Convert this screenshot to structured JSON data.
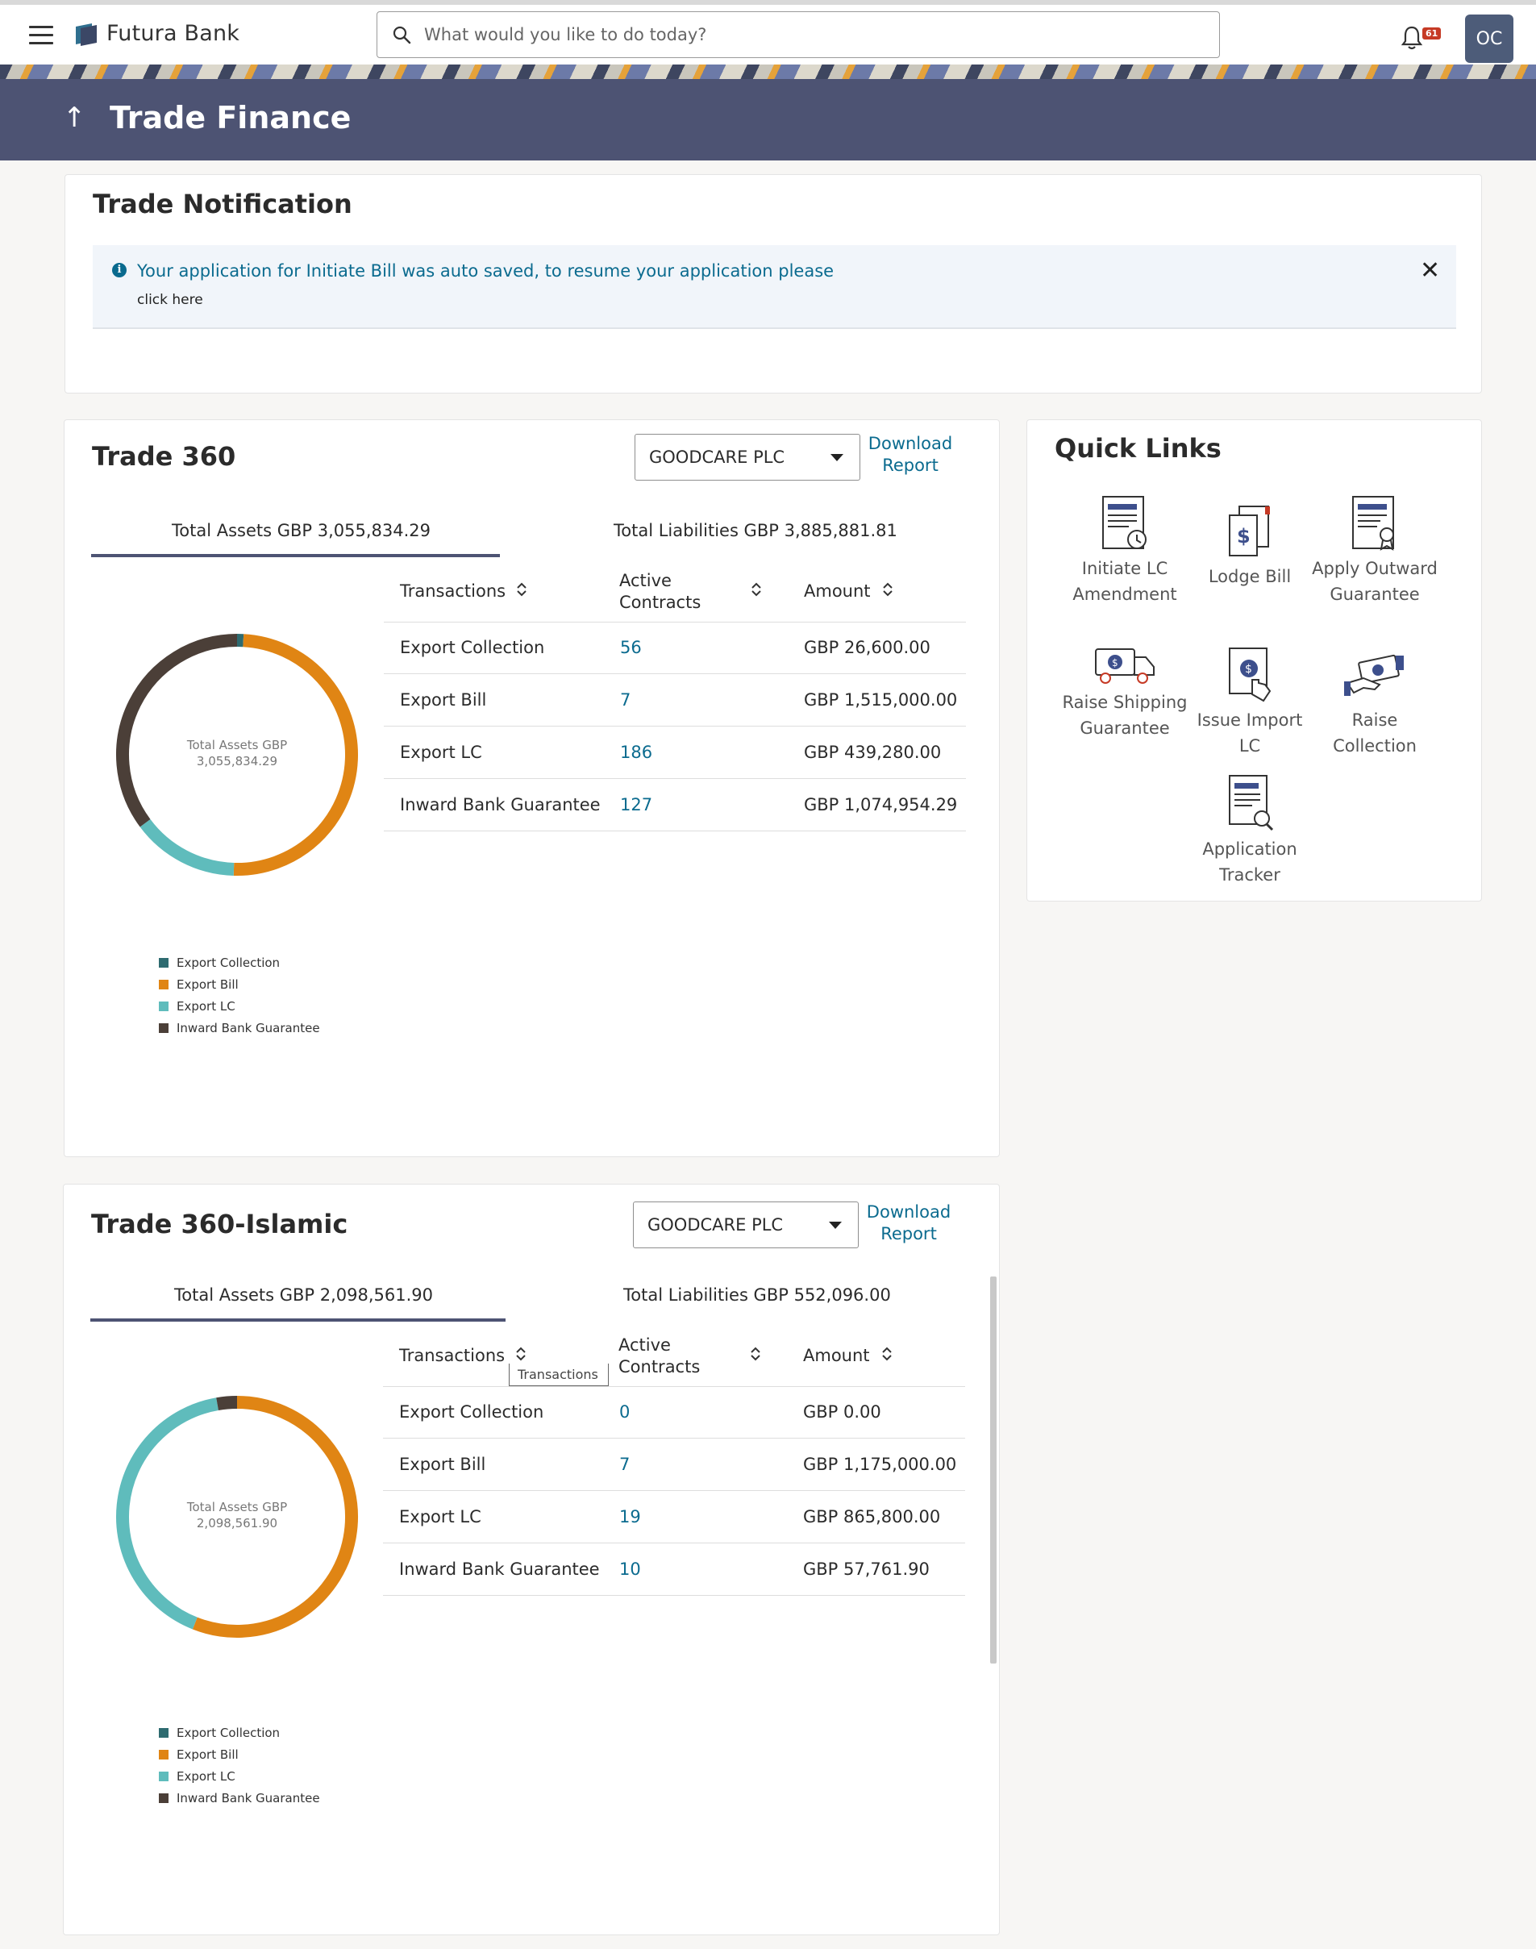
{
  "header": {
    "brand": "Futura Bank",
    "search_placeholder": "What would you like to do today?",
    "notification_count": "61",
    "avatar_initials": "OC"
  },
  "page": {
    "title": "Trade Finance"
  },
  "notification": {
    "title": "Trade Notification",
    "message": "Your application for Initiate Bill was auto saved, to resume your application please",
    "link": "click here"
  },
  "trade360": {
    "title": "Trade 360",
    "party": "GOODCARE PLC",
    "download_line1": "Download",
    "download_line2": "Report",
    "tab_assets": "Total Assets GBP 3,055,834.29",
    "tab_liabilities": "Total Liabilities GBP 3,885,881.81",
    "col_transactions": "Transactions",
    "col_active_1": "Active",
    "col_active_2": "Contracts",
    "col_amount": "Amount",
    "rows": [
      {
        "name": "Export Collection",
        "count": "56",
        "amount": "GBP 26,600.00"
      },
      {
        "name": "Export Bill",
        "count": "7",
        "amount": "GBP 1,515,000.00"
      },
      {
        "name": "Export LC",
        "count": "186",
        "amount": "GBP 439,280.00"
      },
      {
        "name": "Inward Bank Guarantee",
        "count": "127",
        "amount": "GBP 1,074,954.29"
      }
    ],
    "center_line1": "Total Assets GBP",
    "center_line2": "3,055,834.29",
    "legend": [
      "Export Collection",
      "Export Bill",
      "Export LC",
      "Inward Bank Guarantee"
    ]
  },
  "trade360islamic": {
    "title": "Trade 360-Islamic",
    "party": "GOODCARE PLC",
    "download_line1": "Download",
    "download_line2": "Report",
    "tab_assets": "Total Assets GBP 2,098,561.90",
    "tab_liabilities": "Total Liabilities GBP 552,096.00",
    "col_transactions": "Transactions",
    "col_active_1": "Active",
    "col_active_2": "Contracts",
    "col_amount": "Amount",
    "tooltip": "Transactions",
    "rows": [
      {
        "name": "Export Collection",
        "count": "0",
        "amount": "GBP 0.00"
      },
      {
        "name": "Export Bill",
        "count": "7",
        "amount": "GBP 1,175,000.00"
      },
      {
        "name": "Export LC",
        "count": "19",
        "amount": "GBP 865,800.00"
      },
      {
        "name": "Inward Bank Guarantee",
        "count": "10",
        "amount": "GBP 57,761.90"
      }
    ],
    "center_line1": "Total Assets GBP",
    "center_line2": "2,098,561.90",
    "legend": [
      "Export Collection",
      "Export Bill",
      "Export LC",
      "Inward Bank Guarantee"
    ]
  },
  "quick_links": {
    "title": "Quick Links",
    "items": [
      {
        "line1": "Initiate LC",
        "line2": "Amendment"
      },
      {
        "line1": "Lodge Bill",
        "line2": ""
      },
      {
        "line1": "Apply Outward",
        "line2": "Guarantee"
      },
      {
        "line1": "Raise Shipping",
        "line2": "Guarantee"
      },
      {
        "line1": "Issue Import LC",
        "line2": ""
      },
      {
        "line1": "Raise Collection",
        "line2": ""
      },
      {
        "line1": "Application",
        "line2": "Tracker"
      }
    ]
  },
  "colors": {
    "export_collection": "#2e6b70",
    "export_bill": "#e08514",
    "export_lc": "#5fbcbc",
    "inward_bank_guarantee": "#4b3f38",
    "brand_band": "#4d5373",
    "link": "#0b6b8f"
  },
  "chart_data": [
    {
      "type": "pie",
      "title": "Trade 360",
      "categories": [
        "Export Collection",
        "Export Bill",
        "Export LC",
        "Inward Bank Guarantee"
      ],
      "values": [
        26600.0,
        1515000.0,
        439280.0,
        1074954.29
      ],
      "center_text": "Total Assets GBP 3,055,834.29"
    },
    {
      "type": "pie",
      "title": "Trade 360-Islamic",
      "categories": [
        "Export Collection",
        "Export Bill",
        "Export LC",
        "Inward Bank Guarantee"
      ],
      "values": [
        0.0,
        1175000.0,
        865800.0,
        57761.9
      ],
      "center_text": "Total Assets GBP 2,098,561.90"
    }
  ]
}
